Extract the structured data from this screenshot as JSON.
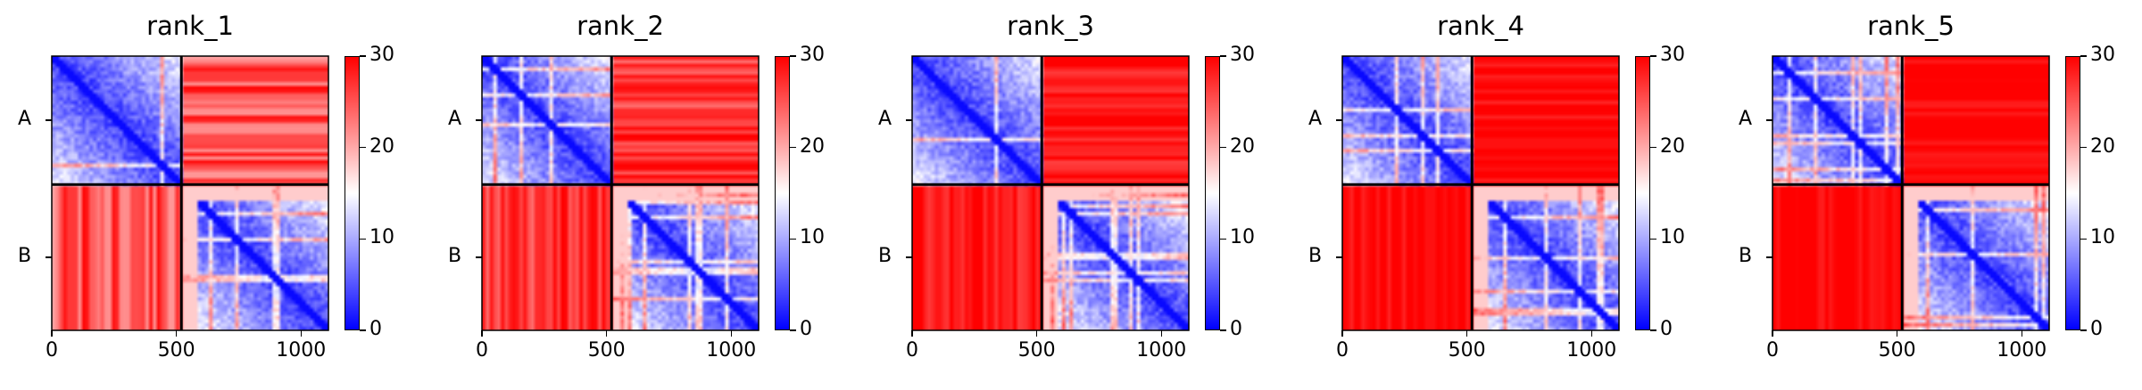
{
  "chart_data": {
    "type": "heatmap",
    "colormap": {
      "low": "#0000ff",
      "mid": "#ffffff",
      "high": "#ff0000"
    },
    "chains": [
      "A",
      "B"
    ],
    "chain_boundary": 520,
    "total_length": 1110,
    "xlim": [
      0,
      1110
    ],
    "x_ticks": [
      0,
      500,
      1000
    ],
    "colorbar": {
      "range": [
        0,
        30
      ],
      "ticks": [
        0,
        10,
        20,
        30
      ]
    },
    "panels": [
      {
        "title": "rank_1",
        "inter_chain_error": 25
      },
      {
        "title": "rank_2",
        "inter_chain_error": 27
      },
      {
        "title": "rank_3",
        "inter_chain_error": 28.5
      },
      {
        "title": "rank_4",
        "inter_chain_error": 29.5
      },
      {
        "title": "rank_5",
        "inter_chain_error": 29.8
      }
    ]
  }
}
